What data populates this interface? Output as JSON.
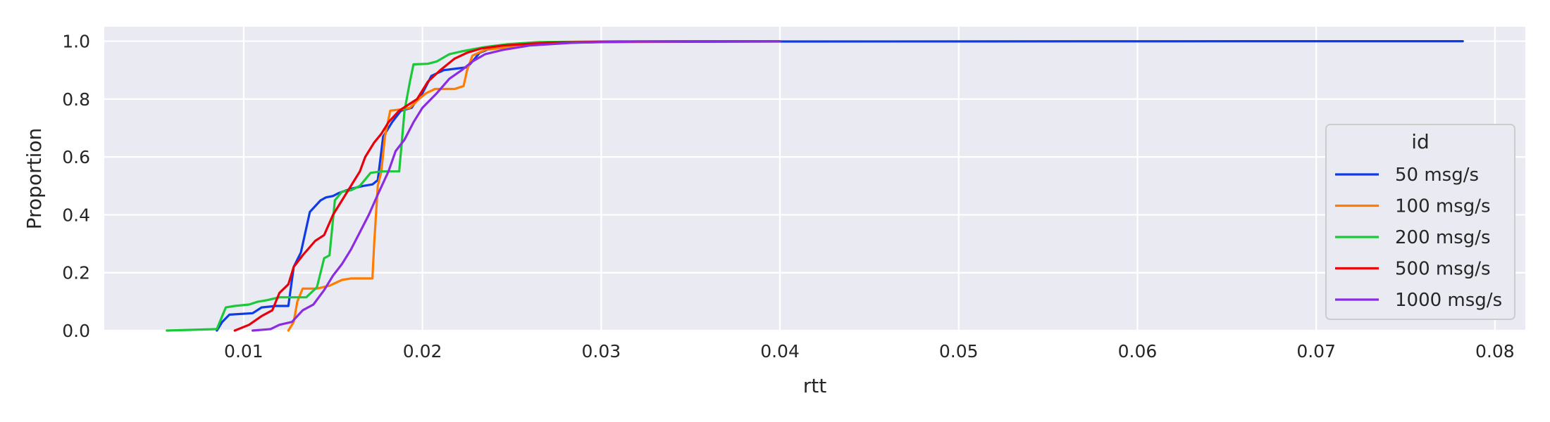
{
  "chart_data": {
    "type": "line",
    "title": "",
    "xlabel": "rtt",
    "ylabel": "Proportion",
    "xlim": [
      0.0022,
      0.0817
    ],
    "ylim": [
      0.0,
      1.05
    ],
    "x_ticks": [
      0.01,
      0.02,
      0.03,
      0.04,
      0.05,
      0.06,
      0.07,
      0.08
    ],
    "x_tick_labels": [
      "0.01",
      "0.02",
      "0.03",
      "0.04",
      "0.05",
      "0.06",
      "0.07",
      "0.08"
    ],
    "y_ticks": [
      0.0,
      0.2,
      0.4,
      0.6,
      0.8,
      1.0
    ],
    "y_tick_labels": [
      "0.0",
      "0.2",
      "0.4",
      "0.6",
      "0.8",
      "1.0"
    ],
    "grid": true,
    "background": "#eaeaf2",
    "legend": {
      "title": "id",
      "placement": "right"
    },
    "series": [
      {
        "name": "50 msg/s",
        "color": "#0d3be6",
        "points": [
          [
            0.0085,
            0.0
          ],
          [
            0.0088,
            0.03
          ],
          [
            0.0092,
            0.055
          ],
          [
            0.0105,
            0.06
          ],
          [
            0.011,
            0.08
          ],
          [
            0.0118,
            0.085
          ],
          [
            0.0125,
            0.085
          ],
          [
            0.0128,
            0.22
          ],
          [
            0.0132,
            0.27
          ],
          [
            0.0137,
            0.41
          ],
          [
            0.0143,
            0.45
          ],
          [
            0.0146,
            0.46
          ],
          [
            0.015,
            0.465
          ],
          [
            0.0153,
            0.475
          ],
          [
            0.016,
            0.49
          ],
          [
            0.0167,
            0.5
          ],
          [
            0.0172,
            0.505
          ],
          [
            0.0175,
            0.52
          ],
          [
            0.0178,
            0.67
          ],
          [
            0.0183,
            0.72
          ],
          [
            0.0188,
            0.76
          ],
          [
            0.0194,
            0.77
          ],
          [
            0.0197,
            0.8
          ],
          [
            0.02,
            0.82
          ],
          [
            0.0205,
            0.88
          ],
          [
            0.0212,
            0.9
          ],
          [
            0.0225,
            0.91
          ],
          [
            0.0228,
            0.93
          ],
          [
            0.0232,
            0.96
          ],
          [
            0.0238,
            0.975
          ],
          [
            0.0248,
            0.985
          ],
          [
            0.027,
            0.993
          ],
          [
            0.03,
            0.997
          ],
          [
            0.04,
            0.999
          ],
          [
            0.07,
            1.0
          ],
          [
            0.0782,
            1.0
          ]
        ]
      },
      {
        "name": "100 msg/s",
        "color": "#ff7c00",
        "points": [
          [
            0.0125,
            0.0
          ],
          [
            0.0128,
            0.03
          ],
          [
            0.013,
            0.1
          ],
          [
            0.0133,
            0.145
          ],
          [
            0.0141,
            0.145
          ],
          [
            0.0148,
            0.155
          ],
          [
            0.0155,
            0.175
          ],
          [
            0.016,
            0.18
          ],
          [
            0.0172,
            0.18
          ],
          [
            0.0173,
            0.3
          ],
          [
            0.0175,
            0.5
          ],
          [
            0.0177,
            0.55
          ],
          [
            0.0179,
            0.67
          ],
          [
            0.0182,
            0.76
          ],
          [
            0.0189,
            0.765
          ],
          [
            0.0193,
            0.77
          ],
          [
            0.0198,
            0.8
          ],
          [
            0.0202,
            0.82
          ],
          [
            0.0207,
            0.835
          ],
          [
            0.0218,
            0.835
          ],
          [
            0.0223,
            0.845
          ],
          [
            0.0225,
            0.9
          ],
          [
            0.0228,
            0.95
          ],
          [
            0.0235,
            0.97
          ],
          [
            0.0242,
            0.975
          ],
          [
            0.0252,
            0.985
          ],
          [
            0.0275,
            0.995
          ],
          [
            0.031,
            0.998
          ],
          [
            0.04,
            1.0
          ]
        ]
      },
      {
        "name": "200 msg/s",
        "color": "#1ac938",
        "points": [
          [
            0.0057,
            0.0
          ],
          [
            0.0085,
            0.005
          ],
          [
            0.0088,
            0.05
          ],
          [
            0.009,
            0.08
          ],
          [
            0.0095,
            0.085
          ],
          [
            0.0103,
            0.09
          ],
          [
            0.0108,
            0.1
          ],
          [
            0.0113,
            0.105
          ],
          [
            0.012,
            0.115
          ],
          [
            0.0135,
            0.115
          ],
          [
            0.0141,
            0.15
          ],
          [
            0.0145,
            0.25
          ],
          [
            0.0148,
            0.26
          ],
          [
            0.0151,
            0.45
          ],
          [
            0.0155,
            0.48
          ],
          [
            0.016,
            0.485
          ],
          [
            0.0165,
            0.5
          ],
          [
            0.0171,
            0.545
          ],
          [
            0.0177,
            0.55
          ],
          [
            0.0187,
            0.55
          ],
          [
            0.019,
            0.76
          ],
          [
            0.0193,
            0.86
          ],
          [
            0.0195,
            0.92
          ],
          [
            0.0203,
            0.922
          ],
          [
            0.0208,
            0.93
          ],
          [
            0.0215,
            0.955
          ],
          [
            0.0222,
            0.965
          ],
          [
            0.0235,
            0.98
          ],
          [
            0.0248,
            0.99
          ],
          [
            0.0265,
            0.997
          ],
          [
            0.03,
            0.999
          ],
          [
            0.04,
            1.0
          ]
        ]
      },
      {
        "name": "500 msg/s",
        "color": "#e8000b",
        "points": [
          [
            0.0095,
            0.0
          ],
          [
            0.0103,
            0.02
          ],
          [
            0.011,
            0.05
          ],
          [
            0.0116,
            0.07
          ],
          [
            0.012,
            0.13
          ],
          [
            0.0125,
            0.16
          ],
          [
            0.0128,
            0.22
          ],
          [
            0.0133,
            0.26
          ],
          [
            0.014,
            0.31
          ],
          [
            0.0145,
            0.33
          ],
          [
            0.015,
            0.4
          ],
          [
            0.0155,
            0.45
          ],
          [
            0.016,
            0.5
          ],
          [
            0.0165,
            0.55
          ],
          [
            0.0168,
            0.6
          ],
          [
            0.0173,
            0.65
          ],
          [
            0.0177,
            0.68
          ],
          [
            0.0181,
            0.72
          ],
          [
            0.0187,
            0.76
          ],
          [
            0.0192,
            0.78
          ],
          [
            0.0197,
            0.8
          ],
          [
            0.0203,
            0.86
          ],
          [
            0.021,
            0.9
          ],
          [
            0.0218,
            0.94
          ],
          [
            0.0225,
            0.96
          ],
          [
            0.0233,
            0.975
          ],
          [
            0.0245,
            0.985
          ],
          [
            0.027,
            0.995
          ],
          [
            0.031,
            0.999
          ],
          [
            0.04,
            1.0
          ]
        ]
      },
      {
        "name": "1000 msg/s",
        "color": "#8b2be2",
        "points": [
          [
            0.0105,
            0.0
          ],
          [
            0.0115,
            0.005
          ],
          [
            0.012,
            0.02
          ],
          [
            0.0127,
            0.03
          ],
          [
            0.0133,
            0.07
          ],
          [
            0.0139,
            0.09
          ],
          [
            0.0145,
            0.14
          ],
          [
            0.015,
            0.19
          ],
          [
            0.0155,
            0.23
          ],
          [
            0.016,
            0.28
          ],
          [
            0.0165,
            0.34
          ],
          [
            0.017,
            0.4
          ],
          [
            0.0175,
            0.47
          ],
          [
            0.0181,
            0.55
          ],
          [
            0.0185,
            0.62
          ],
          [
            0.019,
            0.66
          ],
          [
            0.0195,
            0.72
          ],
          [
            0.02,
            0.77
          ],
          [
            0.0208,
            0.82
          ],
          [
            0.0215,
            0.87
          ],
          [
            0.0222,
            0.9
          ],
          [
            0.0228,
            0.93
          ],
          [
            0.0235,
            0.955
          ],
          [
            0.0245,
            0.97
          ],
          [
            0.026,
            0.985
          ],
          [
            0.0285,
            0.995
          ],
          [
            0.032,
            0.999
          ],
          [
            0.04,
            1.0
          ]
        ]
      }
    ]
  }
}
